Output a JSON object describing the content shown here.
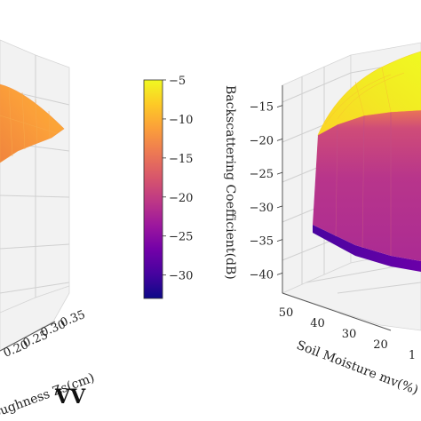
{
  "figure": {
    "polarization_label": "VV"
  },
  "chart_data": [
    {
      "type": "surface",
      "panel": "left",
      "x_axis_label": "oughness Zs(cm)",
      "x_ticks": [
        "0.20",
        "0.25",
        "0.30",
        "0.35"
      ],
      "description_values": "partially visible orange-yellow surface",
      "z_range": [
        -33,
        -5
      ]
    },
    {
      "type": "colorbar",
      "label": "Backscattering Coefficient(dB)",
      "range": [
        -33,
        -5
      ],
      "ticks": [
        -5,
        -10,
        -15,
        -20,
        -25,
        -30
      ],
      "colormap": [
        "#0d0887",
        "#46039f",
        "#7201a8",
        "#9c179e",
        "#bd3786",
        "#d8576b",
        "#ed7953",
        "#fb9f3a",
        "#fdca26",
        "#f0f921"
      ]
    },
    {
      "type": "surface",
      "panel": "right",
      "x_axis_label": "Soil Moisture mv(%)",
      "x_ticks": [
        "50",
        "40",
        "30",
        "20",
        "1"
      ],
      "z_ticks": [
        "-15",
        "-20",
        "-25",
        "-30",
        "-35",
        "-40"
      ],
      "z_range": [
        -43,
        -12
      ]
    }
  ]
}
